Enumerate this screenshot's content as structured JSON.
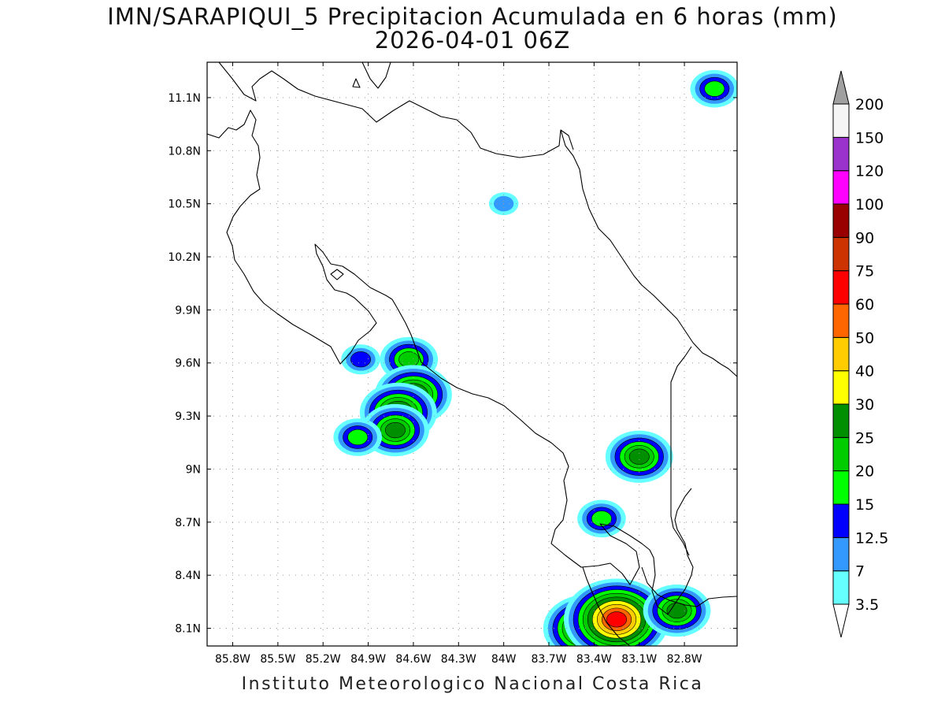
{
  "title": "IMN/SARAPIQUI_5 Precipitacion Acumulada en 6 horas (mm)",
  "subtitle": "2026-04-01 06Z",
  "footer": "Instituto Meteorologico Nacional Costa Rica",
  "map": {
    "lon_range": [
      -85.97,
      -82.45
    ],
    "lat_range": [
      8.0,
      11.3
    ],
    "lon_ticks": [
      {
        "value": -85.8,
        "label": "85.8W"
      },
      {
        "value": -85.5,
        "label": "85.5W"
      },
      {
        "value": -85.2,
        "label": "85.2W"
      },
      {
        "value": -84.9,
        "label": "84.9W"
      },
      {
        "value": -84.6,
        "label": "84.6W"
      },
      {
        "value": -84.3,
        "label": "84.3W"
      },
      {
        "value": -84.0,
        "label": "84W"
      },
      {
        "value": -83.7,
        "label": "83.7W"
      },
      {
        "value": -83.4,
        "label": "83.4W"
      },
      {
        "value": -83.1,
        "label": "83.1W"
      },
      {
        "value": -82.8,
        "label": "82.8W"
      }
    ],
    "lat_ticks": [
      {
        "value": 11.1,
        "label": "11.1N"
      },
      {
        "value": 10.8,
        "label": "10.8N"
      },
      {
        "value": 10.5,
        "label": "10.5N"
      },
      {
        "value": 10.2,
        "label": "10.2N"
      },
      {
        "value": 9.9,
        "label": "9.9N"
      },
      {
        "value": 9.6,
        "label": "9.6N"
      },
      {
        "value": 9.3,
        "label": "9.3N"
      },
      {
        "value": 9.0,
        "label": "9N"
      },
      {
        "value": 8.7,
        "label": "8.7N"
      },
      {
        "value": 8.4,
        "label": "8.4N"
      },
      {
        "value": 8.1,
        "label": "8.1N"
      }
    ],
    "grid": "dotted"
  },
  "colorbar": {
    "levels": [
      "3.5",
      "7",
      "12.5",
      "15",
      "20",
      "25",
      "30",
      "40",
      "50",
      "60",
      "75",
      "90",
      "100",
      "120",
      "150",
      "200"
    ],
    "colors": [
      "#66ffff",
      "#3399ff",
      "#0000ff",
      "#00ff00",
      "#00cc00",
      "#008f00",
      "#ffff00",
      "#ffcc00",
      "#ff6600",
      "#ff0000",
      "#cc3300",
      "#990000",
      "#ff00ff",
      "#9933cc",
      "#f5f5f5",
      "#a0a0a0"
    ],
    "over_color": "#a0a0a0",
    "under_color": "#ffffff"
  },
  "precip_cells": [
    {
      "lon": -82.6,
      "lat": 11.15,
      "peak": 15
    },
    {
      "lon": -84.0,
      "lat": 10.5,
      "peak": 7
    },
    {
      "lon": -84.95,
      "lat": 9.62,
      "peak": 12.5
    },
    {
      "lon": -84.63,
      "lat": 9.62,
      "peak": 20
    },
    {
      "lon": -84.6,
      "lat": 9.42,
      "peak": 30
    },
    {
      "lon": -84.7,
      "lat": 9.32,
      "peak": 30
    },
    {
      "lon": -84.72,
      "lat": 9.22,
      "peak": 25
    },
    {
      "lon": -84.97,
      "lat": 9.18,
      "peak": 15
    },
    {
      "lon": -83.1,
      "lat": 9.07,
      "peak": 25
    },
    {
      "lon": -83.35,
      "lat": 8.72,
      "peak": 15
    },
    {
      "lon": -83.45,
      "lat": 8.1,
      "peak": 40
    },
    {
      "lon": -83.25,
      "lat": 8.15,
      "peak": 60
    },
    {
      "lon": -82.85,
      "lat": 8.2,
      "peak": 25
    }
  ]
}
